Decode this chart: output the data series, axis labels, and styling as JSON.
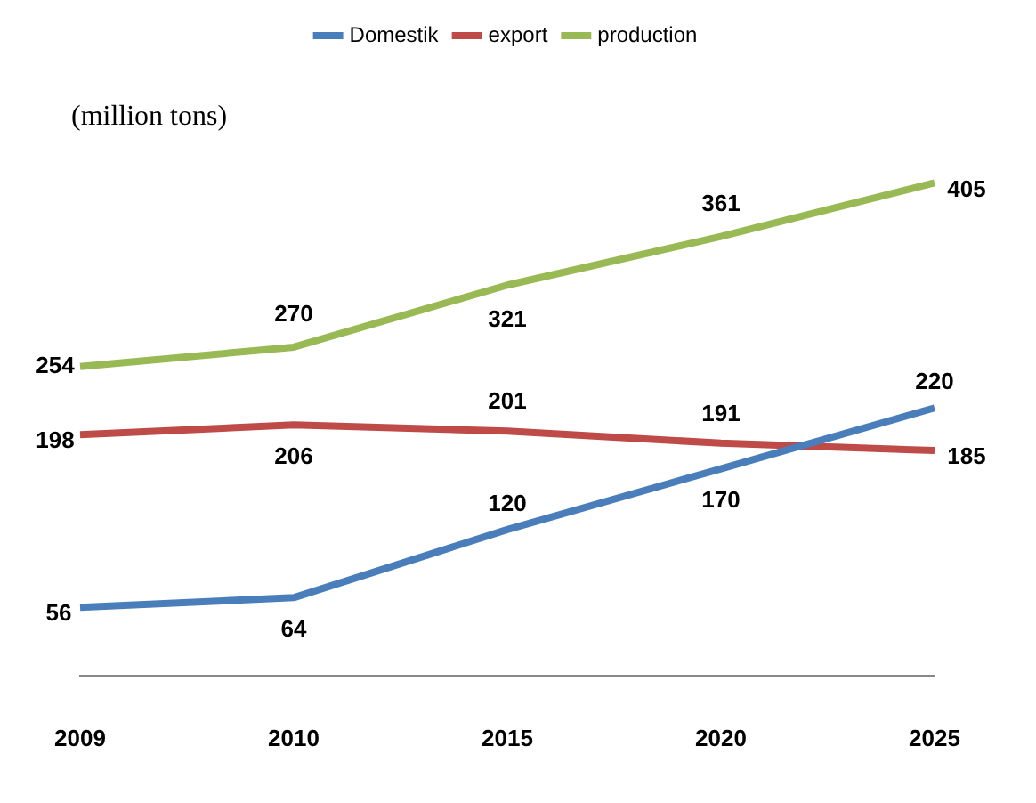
{
  "chart_data": {
    "type": "line",
    "ylabel": "(million tons)",
    "categories": [
      "2009",
      "2010",
      "2015",
      "2020",
      "2025"
    ],
    "series": [
      {
        "name": "Domestik",
        "color": "#4a7ebb",
        "values": [
          56,
          64,
          120,
          170,
          220
        ]
      },
      {
        "name": "export",
        "color": "#be4b48",
        "values": [
          198,
          206,
          201,
          191,
          185
        ]
      },
      {
        "name": "production",
        "color": "#98b954",
        "values": [
          254,
          270,
          321,
          361,
          405
        ]
      }
    ],
    "data_labels": true,
    "legend": "top",
    "grid": false,
    "marker": "none",
    "line_style": "solid",
    "tick_labels": "x"
  }
}
